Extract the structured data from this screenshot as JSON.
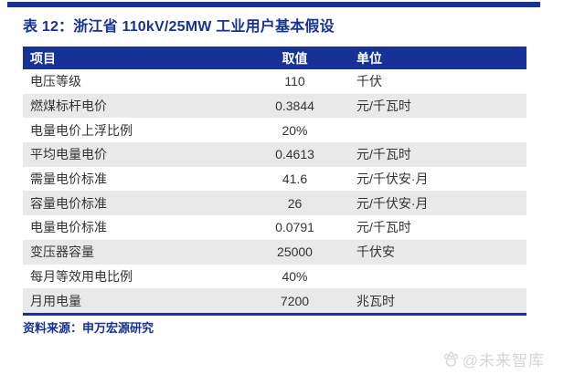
{
  "page": {
    "title": "表 12：浙江省 110kV/25MW 工业用户基本假设",
    "source": "资料来源：申万宏源研究",
    "watermark": "@未来智库"
  },
  "colors": {
    "navy": "#163296",
    "row_alt": "#e9e9e9",
    "body_text": "#333333",
    "watermark_gray": "#d5d5d5"
  },
  "icons": {
    "watermark_paw": "paw-icon"
  },
  "table": {
    "headers": [
      "项目",
      "取值",
      "单位"
    ],
    "rows": [
      {
        "item": "电压等级",
        "value": "110",
        "unit": "千伏"
      },
      {
        "item": "燃煤标杆电价",
        "value": "0.3844",
        "unit": "元/千瓦时"
      },
      {
        "item": "电量电价上浮比例",
        "value": "20%",
        "unit": ""
      },
      {
        "item": "平均电量电价",
        "value": "0.4613",
        "unit": "元/千瓦时"
      },
      {
        "item": "需量电价标准",
        "value": "41.6",
        "unit": "元/千伏安·月"
      },
      {
        "item": "容量电价标准",
        "value": "26",
        "unit": "元/千伏安·月"
      },
      {
        "item": "电量电价标准",
        "value": "0.0791",
        "unit": "元/千瓦时"
      },
      {
        "item": "变压器容量",
        "value": "25000",
        "unit": "千伏安"
      },
      {
        "item": "每月等效用电比例",
        "value": "40%",
        "unit": ""
      },
      {
        "item": "月用电量",
        "value": "7200",
        "unit": "兆瓦时"
      }
    ]
  }
}
